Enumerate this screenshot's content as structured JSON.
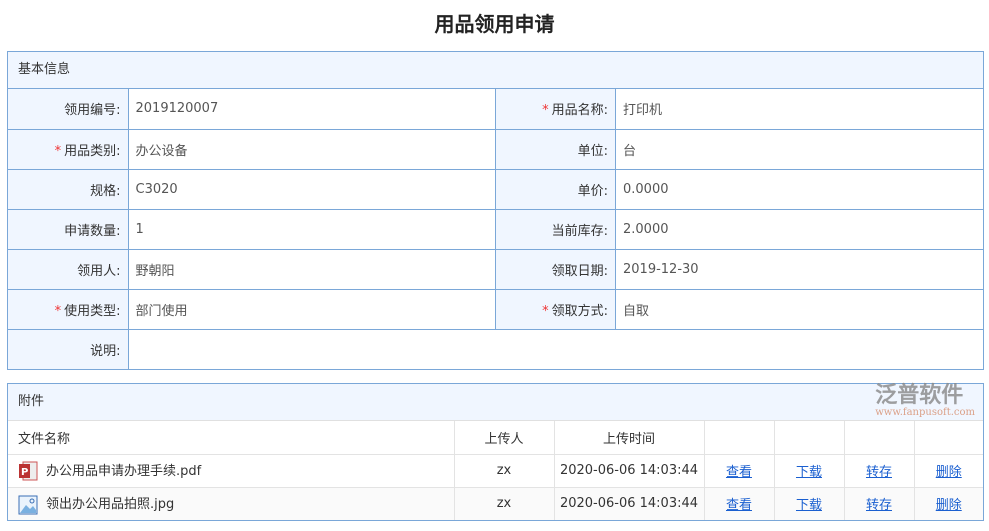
{
  "title": "用品领用申请",
  "basic": {
    "section": "基本信息",
    "rows": [
      [
        {
          "label": "领用编号:",
          "value": "2019120007",
          "req": false
        },
        {
          "label": "用品名称:",
          "value": "打印机",
          "req": true
        }
      ],
      [
        {
          "label": "用品类别:",
          "value": "办公设备",
          "req": true
        },
        {
          "label": "单位:",
          "value": "台",
          "req": false
        }
      ],
      [
        {
          "label": "规格:",
          "value": "C3020",
          "req": false
        },
        {
          "label": "单价:",
          "value": "0.0000",
          "req": false
        }
      ],
      [
        {
          "label": "申请数量:",
          "value": "1",
          "req": false
        },
        {
          "label": "当前库存:",
          "value": "2.0000",
          "req": false
        }
      ],
      [
        {
          "label": "领用人:",
          "value": "野朝阳",
          "req": false
        },
        {
          "label": "领取日期:",
          "value": "2019-12-30",
          "req": false
        }
      ],
      [
        {
          "label": "使用类型:",
          "value": "部门使用",
          "req": true
        },
        {
          "label": "领取方式:",
          "value": "自取",
          "req": true
        }
      ]
    ],
    "note_label": "说明:",
    "note_value": ""
  },
  "required_mark": "*",
  "attachments": {
    "section": "附件",
    "headers": [
      "文件名称",
      "上传人",
      "上传时间"
    ],
    "files": [
      {
        "name": "办公用品申请办理手续.pdf",
        "icon": "pdf-icon",
        "uploader": "zx",
        "time": "2020-06-06 14:03:44"
      },
      {
        "name": "领出办公用品拍照.jpg",
        "icon": "image-icon",
        "uploader": "zx",
        "time": "2020-06-06 14:03:44"
      }
    ],
    "actions": [
      "查看",
      "下载",
      "转存",
      "删除"
    ]
  },
  "watermark": {
    "text": "泛普软件",
    "url": "www.fanpusoft.com"
  }
}
